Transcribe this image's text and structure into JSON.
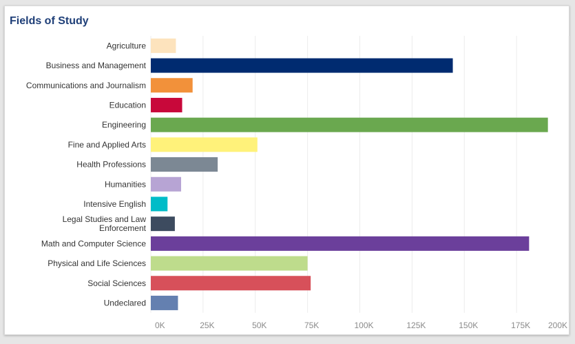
{
  "panel": {
    "title": "Fields of Study"
  },
  "chart_data": {
    "type": "bar",
    "orientation": "horizontal",
    "title": "Fields of Study",
    "xlabel": "",
    "ylabel": "",
    "xlim": [
      0,
      200000
    ],
    "grid": true,
    "ticks": [
      {
        "value": 0,
        "label": "0K"
      },
      {
        "value": 25000,
        "label": "25K"
      },
      {
        "value": 50000,
        "label": "50K"
      },
      {
        "value": 75000,
        "label": "75K"
      },
      {
        "value": 100000,
        "label": "100K"
      },
      {
        "value": 125000,
        "label": "125K"
      },
      {
        "value": 150000,
        "label": "150K"
      },
      {
        "value": 175000,
        "label": "175K"
      },
      {
        "value": 200000,
        "label": "200K"
      }
    ],
    "categories": [
      {
        "label": [
          "Agriculture"
        ],
        "value": 12000,
        "color": "#fde3bd"
      },
      {
        "label": [
          "Business and Management"
        ],
        "value": 144500,
        "color": "#002b70"
      },
      {
        "label": [
          "Communications and Journalism"
        ],
        "value": 20000,
        "color": "#f2913a"
      },
      {
        "label": [
          "Education"
        ],
        "value": 15000,
        "color": "#c8083a"
      },
      {
        "label": [
          "Engineering"
        ],
        "value": 190000,
        "color": "#6aa84f"
      },
      {
        "label": [
          "Fine and Applied Arts"
        ],
        "value": 51000,
        "color": "#fff27a"
      },
      {
        "label": [
          "Health Professions"
        ],
        "value": 32000,
        "color": "#7c8894"
      },
      {
        "label": [
          "Humanities"
        ],
        "value": 14500,
        "color": "#b7a4d4"
      },
      {
        "label": [
          "Intensive English"
        ],
        "value": 8000,
        "color": "#00bcc8"
      },
      {
        "label": [
          "Legal Studies and Law",
          "Enforcement"
        ],
        "value": 11500,
        "color": "#3d4b5f"
      },
      {
        "label": [
          "Math and Computer Science"
        ],
        "value": 181000,
        "color": "#6b3f9b"
      },
      {
        "label": [
          "Physical and Life Sciences"
        ],
        "value": 75000,
        "color": "#bedc8c"
      },
      {
        "label": [
          "Social Sciences"
        ],
        "value": 76500,
        "color": "#d7505a"
      },
      {
        "label": [
          "Undeclared"
        ],
        "value": 13000,
        "color": "#6480b0"
      }
    ]
  }
}
